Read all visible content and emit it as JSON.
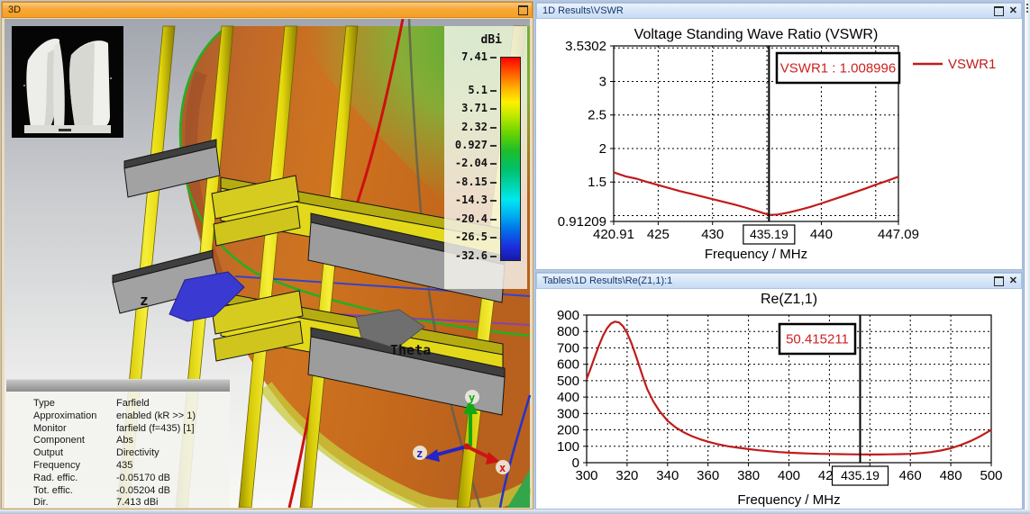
{
  "icons": {
    "close": "✕"
  },
  "panels": {
    "view3d": {
      "title": "3D",
      "scene_labels": {
        "z": "z",
        "theta": "Theta"
      },
      "triad": {
        "x": "x",
        "y": "y",
        "z": "z"
      },
      "colorbar": {
        "title": "dBi",
        "ticks": [
          "7.41",
          "5.1",
          "3.71",
          "2.32",
          "0.927",
          "-2.04",
          "-8.15",
          "-14.3",
          "-20.4",
          "-26.5",
          "-32.6"
        ]
      },
      "info": {
        "rows": [
          {
            "label": "Type",
            "value": "Farfield"
          },
          {
            "label": "Approximation",
            "value": "enabled (kR >> 1)"
          },
          {
            "label": "Monitor",
            "value": "farfield (f=435) [1]"
          },
          {
            "label": "Component",
            "value": "Abs"
          },
          {
            "label": "Output",
            "value": "Directivity"
          },
          {
            "label": "Frequency",
            "value": "435"
          },
          {
            "label": "Rad. effic.",
            "value": "-0.05170 dB"
          },
          {
            "label": "Tot. effic.",
            "value": "-0.05204 dB"
          },
          {
            "label": "Dir.",
            "value": "7.413 dBi"
          }
        ]
      }
    },
    "vswr": {
      "title": "1D Results\\VSWR"
    },
    "rez": {
      "title": "Tables\\1D Results\\Re(Z1,1):1"
    }
  },
  "chart_data": [
    {
      "id": "vswr",
      "type": "line",
      "title": "Voltage Standing Wave Ratio (VSWR)",
      "xlabel": "Frequency / MHz",
      "ylabel": "",
      "xlim": [
        420.91,
        447.09
      ],
      "ylim": [
        0.91209,
        3.5302
      ],
      "grid": true,
      "legend_position": "right-top",
      "xticks": [
        {
          "v": 420.91,
          "label": "420.91"
        },
        {
          "v": 425,
          "label": "425"
        },
        {
          "v": 430,
          "label": "430"
        },
        {
          "v": 440,
          "label": "440"
        },
        {
          "v": 447.09,
          "label": "447.09"
        }
      ],
      "yticks": [
        {
          "v": 3.5302,
          "label": "3.5302"
        },
        {
          "v": 3,
          "label": "3"
        },
        {
          "v": 2.5,
          "label": "2.5"
        },
        {
          "v": 2,
          "label": "2"
        },
        {
          "v": 1.5,
          "label": "1.5"
        },
        {
          "v": 0.91209,
          "label": "0.91209"
        }
      ],
      "xgrid": [
        425,
        430,
        435,
        440,
        445
      ],
      "ygrid": [
        1,
        1.5,
        2,
        2.5,
        3,
        3.5
      ],
      "marker": {
        "x": 435.19,
        "label": "435.19"
      },
      "annotation": "VSWR1 : 1.008996",
      "legend": [
        {
          "label": "VSWR1",
          "color": "#C01C1C"
        }
      ],
      "series": [
        {
          "name": "VSWR1",
          "color": "#C01C1C",
          "points": [
            [
              420.91,
              1.645
            ],
            [
              422,
              1.585
            ],
            [
              423,
              1.55
            ],
            [
              424,
              1.5
            ],
            [
              425,
              1.455
            ],
            [
              426,
              1.41
            ],
            [
              427,
              1.365
            ],
            [
              428,
              1.325
            ],
            [
              429,
              1.285
            ],
            [
              430,
              1.245
            ],
            [
              431,
              1.205
            ],
            [
              432,
              1.165
            ],
            [
              433,
              1.12
            ],
            [
              434,
              1.07
            ],
            [
              435,
              1.018
            ],
            [
              435.19,
              1.009
            ],
            [
              436,
              1.015
            ],
            [
              437,
              1.045
            ],
            [
              438,
              1.085
            ],
            [
              439,
              1.13
            ],
            [
              440,
              1.18
            ],
            [
              441,
              1.235
            ],
            [
              442,
              1.29
            ],
            [
              443,
              1.345
            ],
            [
              444,
              1.4
            ],
            [
              445,
              1.46
            ],
            [
              446,
              1.515
            ],
            [
              447.09,
              1.58
            ]
          ]
        }
      ]
    },
    {
      "id": "rez",
      "type": "line",
      "title": "Re(Z1,1)",
      "xlabel": "Frequency / MHz",
      "ylabel": "",
      "xlim": [
        300,
        500
      ],
      "ylim": [
        0,
        900
      ],
      "grid": true,
      "xticks": [
        {
          "v": 300,
          "label": "300"
        },
        {
          "v": 320,
          "label": "320"
        },
        {
          "v": 340,
          "label": "340"
        },
        {
          "v": 360,
          "label": "360"
        },
        {
          "v": 380,
          "label": "380"
        },
        {
          "v": 400,
          "label": "400"
        },
        {
          "v": 420,
          "label": "420"
        },
        {
          "v": 440,
          "label": "440"
        },
        {
          "v": 460,
          "label": "460"
        },
        {
          "v": 480,
          "label": "480"
        },
        {
          "v": 500,
          "label": "500"
        }
      ],
      "yticks": [
        {
          "v": 900,
          "label": "900"
        },
        {
          "v": 800,
          "label": "800"
        },
        {
          "v": 700,
          "label": "700"
        },
        {
          "v": 600,
          "label": "600"
        },
        {
          "v": 500,
          "label": "500"
        },
        {
          "v": 400,
          "label": "400"
        },
        {
          "v": 300,
          "label": "300"
        },
        {
          "v": 200,
          "label": "200"
        },
        {
          "v": 100,
          "label": "100"
        },
        {
          "v": 0,
          "label": "0"
        }
      ],
      "xgrid": [
        320,
        340,
        360,
        380,
        400,
        420,
        440,
        460,
        480
      ],
      "ygrid": [
        100,
        200,
        300,
        400,
        500,
        600,
        700,
        800
      ],
      "marker": {
        "x": 435.19,
        "label": "435.19"
      },
      "annotation": "50.415211",
      "legend": [],
      "series": [
        {
          "name": "Re(Z1,1)",
          "color": "#C01C1C",
          "points": [
            [
              300,
              510
            ],
            [
              302,
              575
            ],
            [
              304,
              645
            ],
            [
              306,
              712
            ],
            [
              308,
              772
            ],
            [
              310,
              818
            ],
            [
              312,
              848
            ],
            [
              314,
              860
            ],
            [
              316,
              855
            ],
            [
              318,
              832
            ],
            [
              320,
              790
            ],
            [
              322,
              733
            ],
            [
              324,
              664
            ],
            [
              326,
              590
            ],
            [
              328,
              515
            ],
            [
              330,
              448
            ],
            [
              333,
              372
            ],
            [
              336,
              315
            ],
            [
              340,
              255
            ],
            [
              344,
              215
            ],
            [
              348,
              185
            ],
            [
              352,
              162
            ],
            [
              356,
              143
            ],
            [
              360,
              128
            ],
            [
              365,
              112
            ],
            [
              370,
              100
            ],
            [
              375,
              91
            ],
            [
              380,
              83
            ],
            [
              385,
              76
            ],
            [
              390,
              70
            ],
            [
              395,
              65
            ],
            [
              400,
              61
            ],
            [
              405,
              58
            ],
            [
              410,
              56
            ],
            [
              415,
              54
            ],
            [
              420,
              53
            ],
            [
              425,
              52
            ],
            [
              430,
              51
            ],
            [
              435.19,
              50.4
            ],
            [
              440,
              50
            ],
            [
              445,
              50
            ],
            [
              450,
              51
            ],
            [
              455,
              52
            ],
            [
              460,
              54
            ],
            [
              465,
              58
            ],
            [
              470,
              64
            ],
            [
              475,
              74
            ],
            [
              480,
              88
            ],
            [
              485,
              108
            ],
            [
              490,
              133
            ],
            [
              495,
              164
            ],
            [
              500,
              200
            ]
          ]
        }
      ]
    }
  ]
}
